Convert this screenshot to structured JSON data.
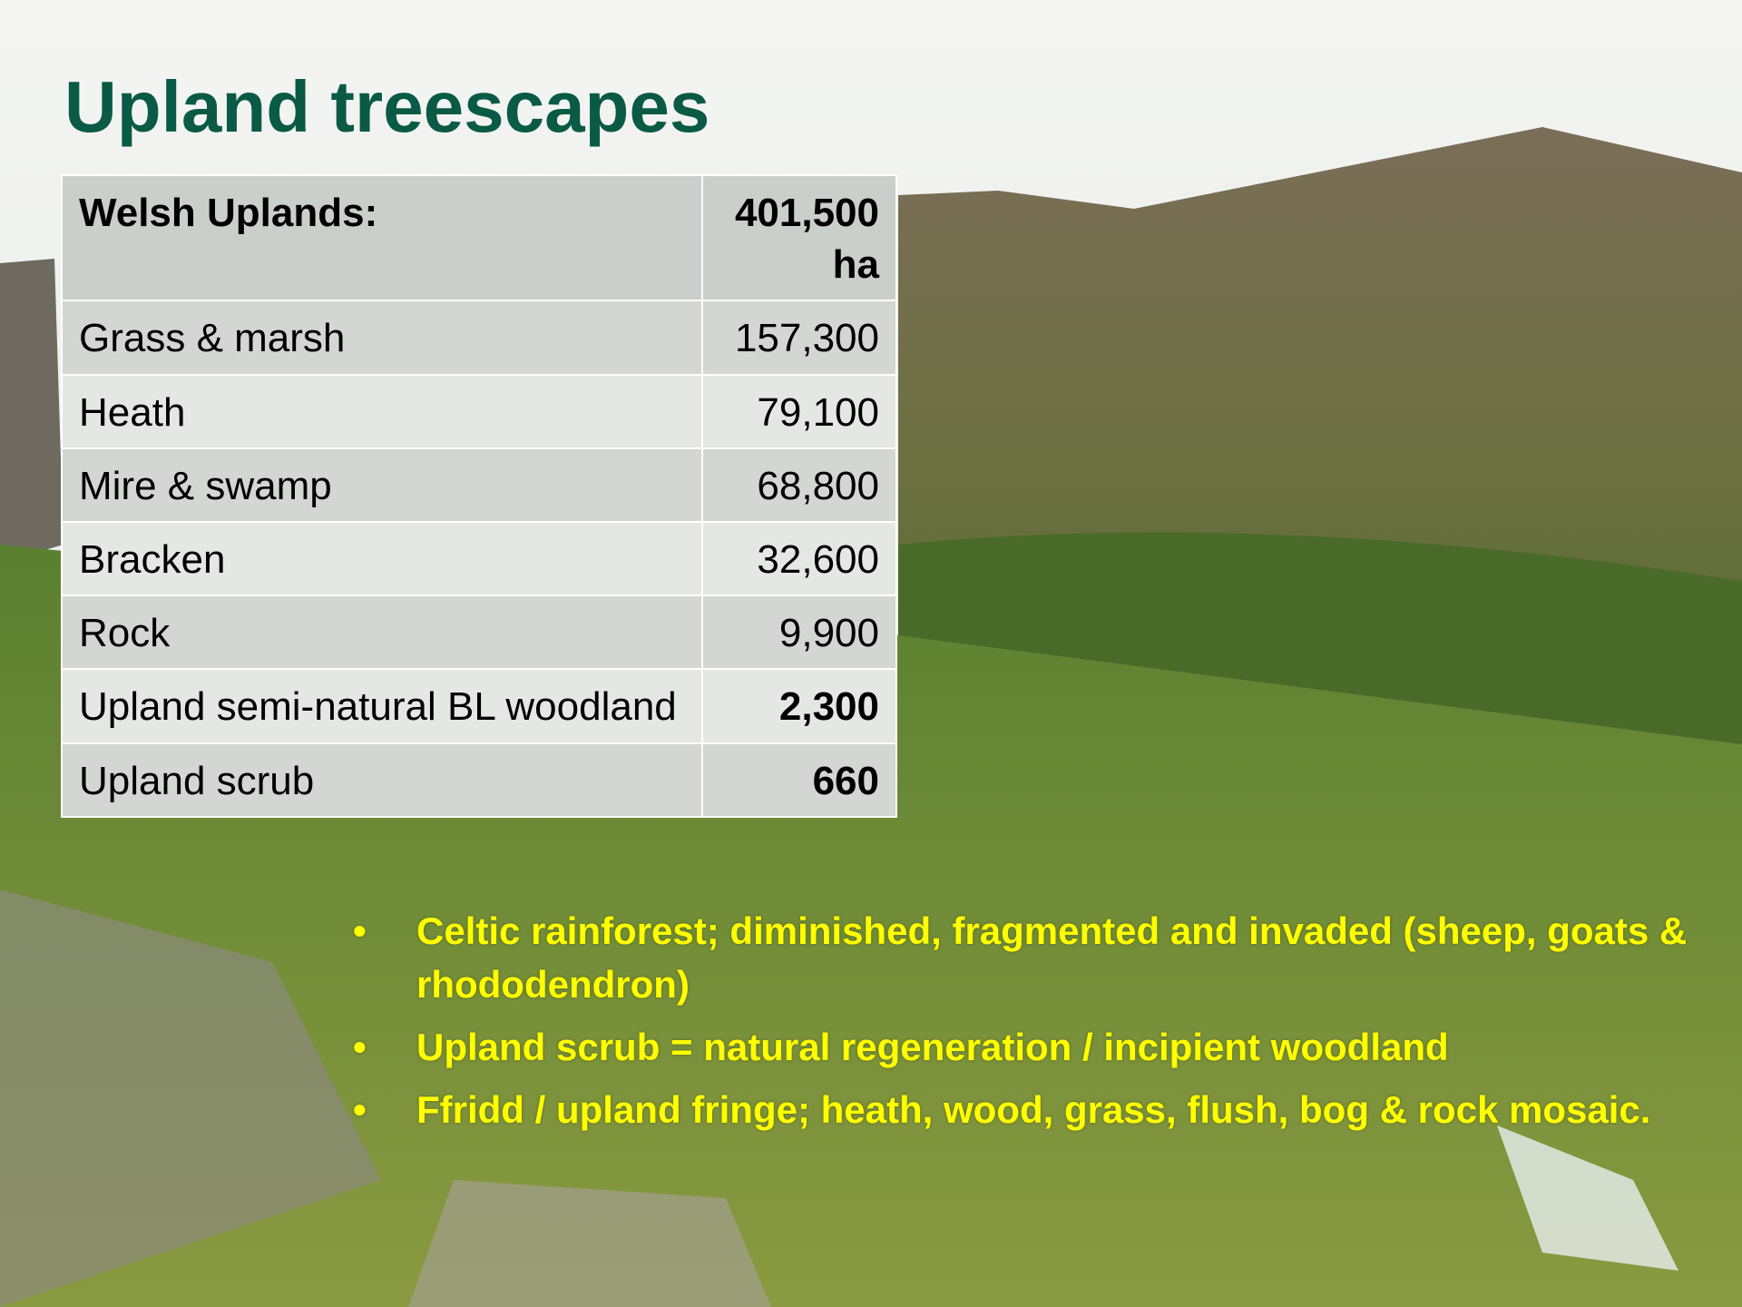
{
  "header": {
    "title": "Upland treescapes"
  },
  "table": {
    "rows": [
      [
        "Welsh Uplands:",
        "401,500ha"
      ],
      [
        "Grass & marsh",
        "157,300"
      ],
      [
        "Heath",
        "79,100"
      ],
      [
        "Mire & swamp",
        "68,800"
      ],
      [
        "Bracken",
        "32,600"
      ],
      [
        "Rock",
        "9,900"
      ],
      [
        "Upland semi-natural BL woodland",
        "2,300"
      ],
      [
        "Upland scrub",
        "660"
      ]
    ]
  },
  "bullets": [
    "Celtic rainforest; diminished, fragmented and invaded (sheep, goats & rhododendron)",
    "Upland scrub = natural regeneration / incipient woodland",
    "Ffridd / upland fringe; heath, wood, grass, flush, bog & rock mosaic."
  ]
}
